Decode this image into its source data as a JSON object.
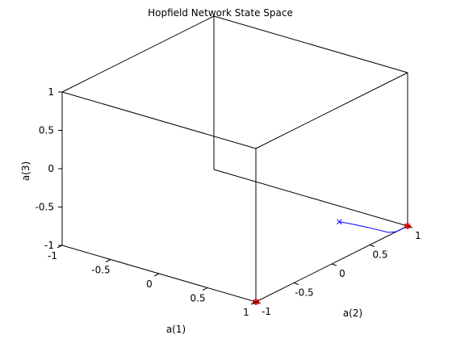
{
  "chart_data": {
    "type": "line3d",
    "title": "Hopfield Network State Space",
    "xlabel": "a(1)",
    "ylabel": "a(2)",
    "zlabel": "a(3)",
    "xlim": [
      -1,
      1
    ],
    "ylim": [
      -1,
      1
    ],
    "zlim": [
      -1,
      1
    ],
    "xticks": [
      "-1",
      "-0.5",
      "0",
      "0.5",
      "1"
    ],
    "yticks": [
      "-1",
      "-0.5",
      "0",
      "0.5",
      "1"
    ],
    "zticks": [
      "-1",
      "-0.5",
      "0",
      "0.5",
      "1"
    ],
    "grid": false,
    "stable_points": [
      {
        "a1": 1,
        "a2": -1,
        "a3": -1
      },
      {
        "a1": 1,
        "a2": 1,
        "a3": -1
      }
    ],
    "trajectory": {
      "start": {
        "a1": 1,
        "a2": 0.1,
        "a3": -0.5
      },
      "points": [
        {
          "a1": 1,
          "a2": 0.1,
          "a3": -0.5
        },
        {
          "a1": 1,
          "a2": 0.25,
          "a3": -0.6
        },
        {
          "a1": 1,
          "a2": 0.42,
          "a3": -0.72
        },
        {
          "a1": 1,
          "a2": 0.6,
          "a3": -0.85
        },
        {
          "a1": 1,
          "a2": 0.75,
          "a3": -0.96
        },
        {
          "a1": 1,
          "a2": 0.85,
          "a3": -1
        },
        {
          "a1": 1,
          "a2": 1,
          "a3": -1
        }
      ]
    },
    "colors": {
      "trajectory": "#0000ff",
      "stable_point": "#ff0000",
      "box": "#000000"
    }
  }
}
